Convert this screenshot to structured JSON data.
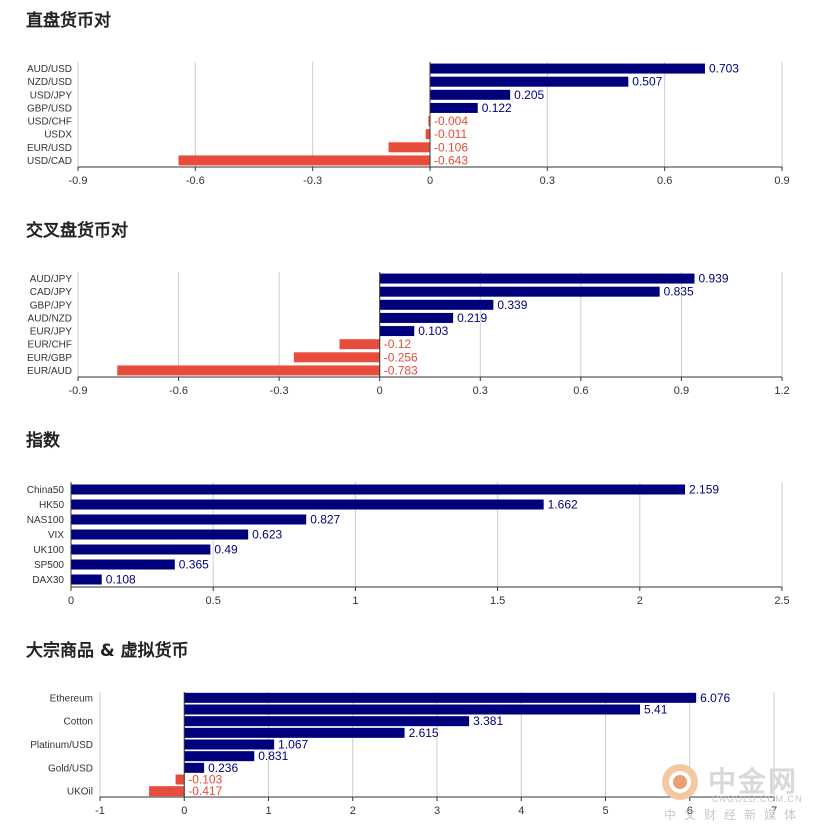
{
  "colors": {
    "positive": "#00007d",
    "negative": "#e74c3c",
    "grid": "#cccccc"
  },
  "chart_data": [
    {
      "type": "bar",
      "orientation": "horizontal",
      "title": "直盘货币对",
      "categories": [
        "AUD/USD",
        "NZD/USD",
        "USD/JPY",
        "GBP/USD",
        "USD/CHF",
        "USDX",
        "EUR/USD",
        "USD/CAD"
      ],
      "values": [
        0.703,
        0.507,
        0.205,
        0.122,
        -0.004,
        -0.011,
        -0.106,
        -0.643
      ],
      "xlim": [
        -0.9,
        0.9
      ],
      "xticks": [
        "-0.9",
        "-0.6",
        "-0.3",
        "0",
        "0.3",
        "0.6",
        "0.9"
      ],
      "grid": true
    },
    {
      "type": "bar",
      "orientation": "horizontal",
      "title": "交叉盘货币对",
      "categories": [
        "AUD/JPY",
        "CAD/JPY",
        "GBP/JPY",
        "AUD/NZD",
        "EUR/JPY",
        "EUR/CHF",
        "EUR/GBP",
        "EUR/AUD"
      ],
      "values": [
        0.939,
        0.835,
        0.339,
        0.219,
        0.103,
        -0.12,
        -0.256,
        -0.783
      ],
      "xlim": [
        -0.9,
        1.2
      ],
      "xticks": [
        "-0.9",
        "-0.6",
        "-0.3",
        "0",
        "0.3",
        "0.6",
        "0.9",
        "1.2"
      ],
      "grid": true
    },
    {
      "type": "bar",
      "orientation": "horizontal",
      "title": "指数",
      "categories": [
        "China50",
        "HK50",
        "NAS100",
        "VIX",
        "UK100",
        "SP500",
        "DAX30"
      ],
      "values": [
        2.159,
        1.662,
        0.827,
        0.623,
        0.49,
        0.365,
        0.108
      ],
      "xlim": [
        0,
        2.5
      ],
      "xticks": [
        "0",
        "0.5",
        "1",
        "1.5",
        "2",
        "2.5"
      ],
      "grid": true
    },
    {
      "type": "bar",
      "orientation": "horizontal",
      "title": "大宗商品 & 虚拟货币",
      "categories": [
        "Ethereum",
        "",
        "Cotton",
        "",
        "Platinum/USD",
        "",
        "Gold/USD",
        "",
        "UKOil"
      ],
      "values": [
        6.076,
        5.41,
        3.381,
        2.615,
        1.067,
        0.831,
        0.236,
        -0.103,
        -0.417
      ],
      "xlim": [
        -1,
        7
      ],
      "xticks": [
        "-1",
        "0",
        "1",
        "2",
        "3",
        "4",
        "5",
        "6",
        "7"
      ],
      "grid": true
    }
  ],
  "watermark": {
    "brand": "中金网",
    "url": "CNGOLD.COM.CN",
    "sub": "中文财经新媒体"
  }
}
